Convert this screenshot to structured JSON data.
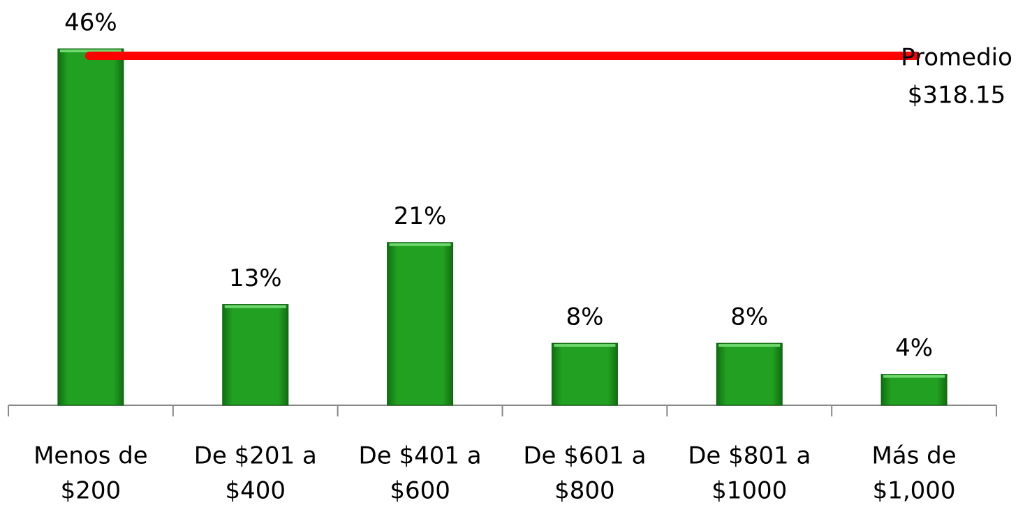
{
  "chart_data": {
    "type": "bar",
    "categories": [
      [
        "Menos de",
        "$200"
      ],
      [
        "De $201 a",
        "$400"
      ],
      [
        "De $401 a",
        "$600"
      ],
      [
        "De $601 a",
        "$800"
      ],
      [
        "De $801 a",
        "$1000"
      ],
      [
        "Más de",
        "$1,000"
      ]
    ],
    "values": [
      46,
      13,
      21,
      8,
      8,
      4
    ],
    "value_labels": [
      "46%",
      "13%",
      "21%",
      "8%",
      "8%",
      "4%"
    ],
    "color": "#22a022",
    "annotation": [
      "Promedio",
      "$318.15"
    ],
    "annotation_color": "#ff0000"
  }
}
